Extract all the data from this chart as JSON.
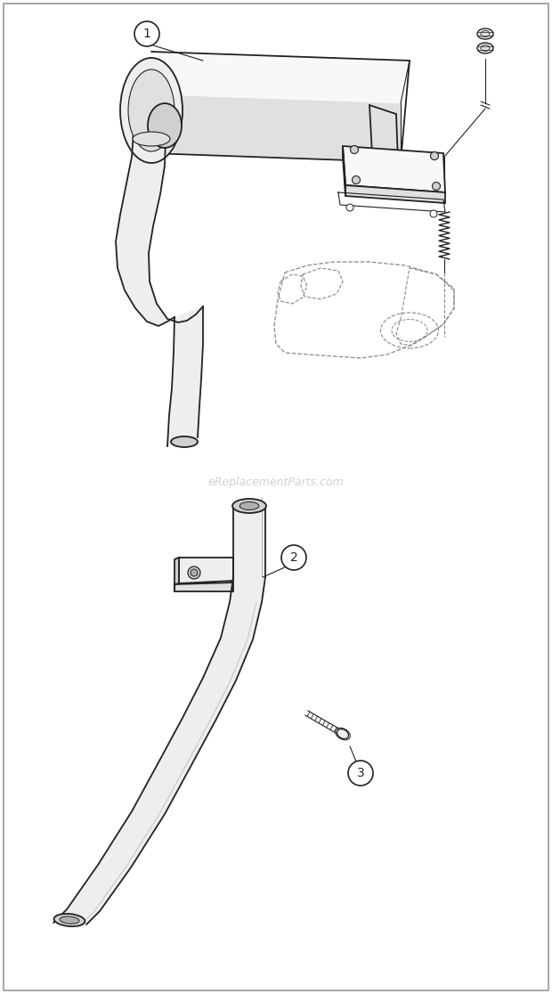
{
  "bg_color": "#ffffff",
  "line_color": "#222222",
  "dashed_color": "#888888",
  "watermark_text": "eReplacementParts.com",
  "watermark_color": "#cccccc",
  "watermark_fontsize": 9,
  "fig_width": 6.2,
  "fig_height": 11.16,
  "dpi": 100,
  "lw_main": 1.3,
  "lw_thin": 0.8,
  "lw_dashed": 0.9,
  "face_light": "#f8f8f8",
  "face_mid": "#eeeeee",
  "face_dark": "#e0e0e0",
  "face_darkest": "#d0d0d0"
}
